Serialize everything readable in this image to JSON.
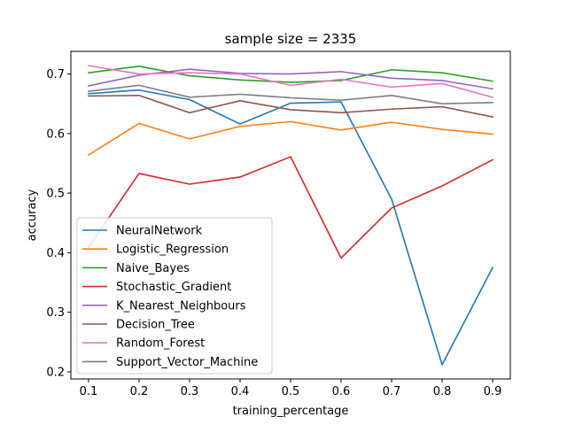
{
  "chart_data": {
    "type": "line",
    "title": "sample size = 2335",
    "xlabel": "training_percentage",
    "ylabel": "accuracy",
    "x": [
      0.1,
      0.2,
      0.3,
      0.4,
      0.5,
      0.6,
      0.7,
      0.8,
      0.9
    ],
    "xlim": [
      0.065,
      0.935
    ],
    "ylim": [
      0.188,
      0.738
    ],
    "xticks": [
      "0.1",
      "0.2",
      "0.3",
      "0.4",
      "0.5",
      "0.6",
      "0.7",
      "0.8",
      "0.9"
    ],
    "yticks": [
      "0.2",
      "0.3",
      "0.4",
      "0.5",
      "0.6",
      "0.7"
    ],
    "legend_position": "lower-left",
    "grid": false,
    "series": [
      {
        "name": "NeuralNetwork",
        "color": "#1f77b4",
        "values": [
          0.667,
          0.673,
          0.657,
          0.616,
          0.651,
          0.653,
          0.49,
          0.212,
          0.375
        ]
      },
      {
        "name": "Logistic_Regression",
        "color": "#ff7f0e",
        "values": [
          0.564,
          0.617,
          0.591,
          0.612,
          0.62,
          0.606,
          0.619,
          0.607,
          0.599
        ]
      },
      {
        "name": "Naive_Bayes",
        "color": "#2ca02c",
        "values": [
          0.702,
          0.713,
          0.697,
          0.69,
          0.686,
          0.689,
          0.707,
          0.702,
          0.688
        ]
      },
      {
        "name": "Stochastic_Gradient",
        "color": "#d62728",
        "values": [
          0.409,
          0.533,
          0.515,
          0.527,
          0.561,
          0.391,
          0.475,
          0.512,
          0.556
        ]
      },
      {
        "name": "K_Nearest_Neighbours",
        "color": "#9467bd",
        "values": [
          0.68,
          0.698,
          0.708,
          0.701,
          0.7,
          0.704,
          0.693,
          0.689,
          0.675
        ]
      },
      {
        "name": "Decision_Tree",
        "color": "#8c564b",
        "values": [
          0.663,
          0.664,
          0.635,
          0.655,
          0.64,
          0.635,
          0.641,
          0.645,
          0.628
        ]
      },
      {
        "name": "Random_Forest",
        "color": "#e377c2",
        "values": [
          0.714,
          0.7,
          0.702,
          0.7,
          0.681,
          0.691,
          0.678,
          0.684,
          0.661
        ]
      },
      {
        "name": "Support_Vector_Machine",
        "color": "#7f7f7f",
        "values": [
          0.671,
          0.681,
          0.661,
          0.666,
          0.66,
          0.656,
          0.664,
          0.65,
          0.652
        ]
      }
    ]
  }
}
